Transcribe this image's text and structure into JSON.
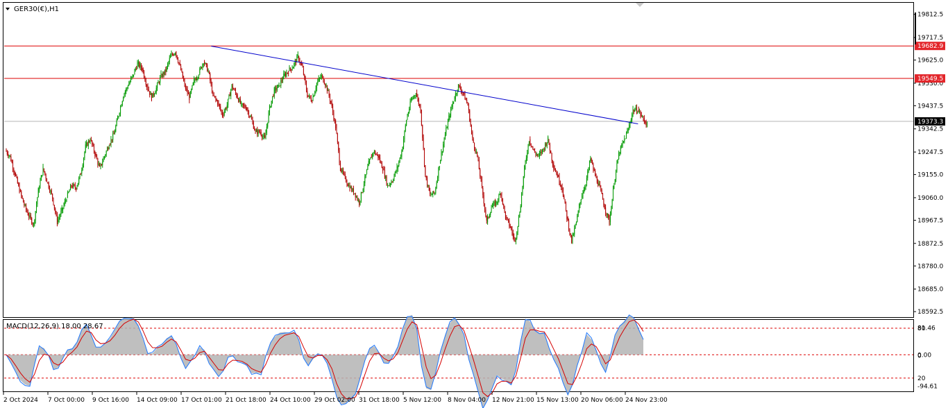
{
  "symbol_label": "GER30(€),H1",
  "macd_label": "MACD(12,26,9) 18.00 28.67",
  "colors": {
    "background": "#ffffff",
    "frame": "#000000",
    "bull": "#009900",
    "bear": "#b00000",
    "resistance_line": "#dd0000",
    "trendline": "#0000cc",
    "price_line": "#b4b4b4",
    "macd_hist": "#b4b4b4",
    "macd_line": "#1e78ff",
    "signal_line": "#d40000",
    "level_dash": "#dd0000",
    "tag_red_bg": "#e3262b",
    "tag_dark_bg": "#000000",
    "tag_text": "#ffffff"
  },
  "chart_data": [
    {
      "type": "candlestick",
      "title": "GER30(€),H1",
      "ylim": [
        18570,
        19860
      ],
      "price_ticks": [
        "19812.5",
        "19717.5",
        "19625.0",
        "19530.0",
        "19437.5",
        "19342.5",
        "19247.5",
        "19155.0",
        "19060.0",
        "18967.5",
        "18872.5",
        "18780.0",
        "18685.0",
        "18592.5"
      ],
      "time_ticks": [
        "2 Oct 2024",
        "7 Oct 00:00",
        "9 Oct 16:00",
        "14 Oct 09:00",
        "17 Oct 01:00",
        "21 Oct 18:00",
        "24 Oct 10:00",
        "29 Oct 02:00",
        "31 Oct 18:00",
        "5 Nov 12:00",
        "8 Nov 04:00",
        "12 Nov 21:00",
        "15 Nov 13:00",
        "20 Nov 06:00",
        "24 Nov 23:00"
      ],
      "horizontal_levels": [
        {
          "price": 19682.9,
          "label": "19682.9"
        },
        {
          "price": 19549.5,
          "label": "19549.5"
        }
      ],
      "current_price": {
        "price": 19373.3,
        "label": "19373.3"
      },
      "trendline": [
        {
          "time_index": 19.3,
          "price": 19682
        },
        {
          "time_index": 59.5,
          "price": 19363
        }
      ],
      "bars_per_tick": 5,
      "closes": [
        19230,
        19160,
        19090,
        19030,
        18985,
        18950,
        19090,
        19180,
        19120,
        19060,
        18960,
        19010,
        19060,
        19110,
        19100,
        19160,
        19270,
        19300,
        19240,
        19180,
        19230,
        19280,
        19320,
        19400,
        19480,
        19520,
        19560,
        19610,
        19590,
        19520,
        19470,
        19510,
        19560,
        19580,
        19640,
        19660,
        19600,
        19520,
        19470,
        19540,
        19570,
        19620,
        19580,
        19480,
        19450,
        19400,
        19440,
        19520,
        19480,
        19440,
        19430,
        19390,
        19330,
        19330,
        19300,
        19430,
        19500,
        19520,
        19560,
        19580,
        19600,
        19640,
        19590,
        19480,
        19460,
        19530,
        19560,
        19520,
        19450,
        19350,
        19180,
        19140,
        19100,
        19080,
        19040,
        19120,
        19200,
        19250,
        19230,
        19180,
        19110,
        19130,
        19180,
        19250,
        19380,
        19460,
        19490,
        19420,
        19150,
        19070,
        19080,
        19200,
        19300,
        19390,
        19460,
        19520,
        19490,
        19440,
        19300,
        19230,
        19100,
        18960,
        19020,
        19040,
        19080,
        18980,
        18940,
        18880,
        19000,
        19180,
        19300,
        19250,
        19230,
        19260,
        19300,
        19200,
        19150,
        19100,
        18980,
        18880,
        18960,
        19060,
        19120,
        19220,
        19150,
        19100,
        19020,
        18960,
        19120,
        19240,
        19290,
        19340,
        19420,
        19420,
        19390,
        19360
      ]
    },
    {
      "type": "line",
      "title": "MACD(12,26,9) 18.00 28.67",
      "ylim": [
        -110,
        105
      ],
      "scale_ticks": [
        "81.46",
        "80",
        "0.00",
        "0",
        "20",
        "-94.61"
      ],
      "levels": [
        80,
        0,
        -70
      ],
      "series": [
        {
          "name": "MACD",
          "values": []
        },
        {
          "name": "Signal",
          "values": []
        }
      ]
    }
  ]
}
